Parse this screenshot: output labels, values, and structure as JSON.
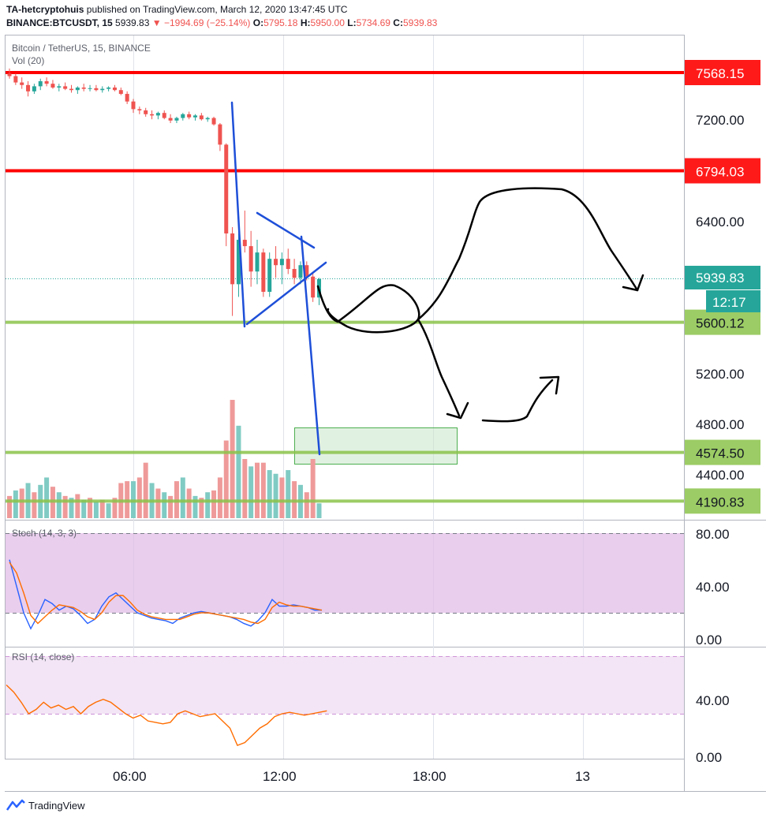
{
  "header": {
    "publisher": "TA-hetcryptohuis",
    "published_text": "published on TradingView.com, March 12, 2020 13:47:45 UTC",
    "symbol": "BINANCE:BTCUSDT, 15",
    "last": "5939.83",
    "change": "▼ −1994.69 (−25.14%)",
    "o_label": "O:",
    "o": "5795.18",
    "h_label": "H:",
    "h": "5950.00",
    "l_label": "L:",
    "l": "5734.69",
    "c_label": "C:",
    "c": "5939.83"
  },
  "legend": {
    "title": "Bitcoin / TetherUS, 15, BINANCE",
    "vol": "Vol (20)"
  },
  "price_axis": {
    "ticks": [
      "7200.00",
      "6400.00",
      "5200.00",
      "4800.00",
      "4400.00"
    ],
    "levels": [
      {
        "label": "7568.15",
        "value": 7568.15,
        "kind": "resistance",
        "color": "#ff0000"
      },
      {
        "label": "6794.03",
        "value": 6794.03,
        "kind": "resistance",
        "color": "#ff0000"
      },
      {
        "label": "5600.12",
        "value": 5600.12,
        "kind": "support",
        "color": "#8bc34a"
      },
      {
        "label": "4574.50",
        "value": 4574.5,
        "kind": "support",
        "color": "#8bc34a"
      },
      {
        "label": "4190.83",
        "value": 4190.83,
        "kind": "support",
        "color": "#8bc34a"
      }
    ],
    "last_price": "5939.83",
    "countdown": "12:17",
    "last_color": "#26a69a"
  },
  "stoch": {
    "label": "Stoch (14, 3, 3)",
    "ticks": [
      "80.00",
      "40.00",
      "0.00"
    ],
    "k_color": "#2962ff",
    "d_color": "#ff6d00",
    "band_color": "#e1bee7"
  },
  "rsi": {
    "label": "RSI (14, close)",
    "ticks": [
      "40.00",
      "0.00"
    ],
    "line_color": "#ff6d00",
    "band_color": "#f3e5f5"
  },
  "time_axis": {
    "ticks": [
      "06:00",
      "12:00",
      "18:00",
      "13"
    ]
  },
  "footer": {
    "brand": "TradingView"
  },
  "chart_data": [
    {
      "type": "candlestick",
      "title": "Bitcoin / TetherUS, 15, BINANCE",
      "interval": "15",
      "ylim": [
        4100,
        7750
      ],
      "x_ticks": [
        "06:00",
        "12:00",
        "18:00",
        "13"
      ],
      "candles": [
        [
          7560,
          7600,
          7520,
          7540
        ],
        [
          7540,
          7560,
          7470,
          7490
        ],
        [
          7490,
          7530,
          7440,
          7470
        ],
        [
          7470,
          7500,
          7380,
          7420
        ],
        [
          7420,
          7480,
          7400,
          7460
        ],
        [
          7460,
          7520,
          7430,
          7500
        ],
        [
          7500,
          7530,
          7460,
          7480
        ],
        [
          7480,
          7510,
          7440,
          7450
        ],
        [
          7450,
          7480,
          7420,
          7460
        ],
        [
          7460,
          7490,
          7430,
          7440
        ],
        [
          7440,
          7470,
          7410,
          7430
        ],
        [
          7430,
          7460,
          7400,
          7450
        ],
        [
          7450,
          7480,
          7420,
          7440
        ],
        [
          7440,
          7470,
          7420,
          7445
        ],
        [
          7445,
          7470,
          7420,
          7430
        ],
        [
          7430,
          7460,
          7410,
          7440
        ],
        [
          7440,
          7460,
          7420,
          7450
        ],
        [
          7450,
          7470,
          7420,
          7430
        ],
        [
          7430,
          7450,
          7390,
          7400
        ],
        [
          7400,
          7420,
          7320,
          7340
        ],
        [
          7340,
          7360,
          7250,
          7280
        ],
        [
          7280,
          7300,
          7240,
          7270
        ],
        [
          7270,
          7290,
          7220,
          7240
        ],
        [
          7240,
          7270,
          7200,
          7230
        ],
        [
          7230,
          7260,
          7200,
          7250
        ],
        [
          7250,
          7270,
          7200,
          7210
        ],
        [
          7210,
          7240,
          7170,
          7190
        ],
        [
          7190,
          7220,
          7170,
          7210
        ],
        [
          7210,
          7250,
          7190,
          7240
        ],
        [
          7240,
          7260,
          7200,
          7215
        ],
        [
          7215,
          7240,
          7190,
          7230
        ],
        [
          7230,
          7250,
          7190,
          7200
        ],
        [
          7200,
          7220,
          7180,
          7210
        ],
        [
          7210,
          7220,
          7150,
          7160
        ],
        [
          7160,
          7170,
          6950,
          7000
        ],
        [
          7000,
          7010,
          6200,
          6300
        ],
        [
          6300,
          6350,
          5650,
          5900
        ],
        [
          5900,
          6300,
          5800,
          6250
        ],
        [
          6250,
          6480,
          6150,
          6200
        ],
        [
          6200,
          6320,
          5880,
          6000
        ],
        [
          6000,
          6250,
          5900,
          6150
        ],
        [
          6150,
          6180,
          5800,
          5840
        ],
        [
          5840,
          6150,
          5800,
          6100
        ],
        [
          6100,
          6200,
          5950,
          6050
        ],
        [
          6050,
          6150,
          5900,
          6100
        ],
        [
          6100,
          6180,
          5980,
          6020
        ],
        [
          6020,
          6100,
          5900,
          5950
        ],
        [
          5950,
          6080,
          5900,
          6050
        ],
        [
          6050,
          6080,
          5930,
          5960
        ],
        [
          5960,
          5990,
          5760,
          5795
        ],
        [
          5795,
          5950,
          5735,
          5940
        ]
      ],
      "volume": [
        {
          "v": 60,
          "up": false
        },
        {
          "v": 75,
          "up": true
        },
        {
          "v": 80,
          "up": false
        },
        {
          "v": 95,
          "up": true
        },
        {
          "v": 70,
          "up": false
        },
        {
          "v": 90,
          "up": true
        },
        {
          "v": 110,
          "up": true
        },
        {
          "v": 85,
          "up": false
        },
        {
          "v": 70,
          "up": true
        },
        {
          "v": 60,
          "up": false
        },
        {
          "v": 55,
          "up": true
        },
        {
          "v": 65,
          "up": false
        },
        {
          "v": 50,
          "up": true
        },
        {
          "v": 55,
          "up": false
        },
        {
          "v": 45,
          "up": true
        },
        {
          "v": 50,
          "up": false
        },
        {
          "v": 40,
          "up": true
        },
        {
          "v": 55,
          "up": false
        },
        {
          "v": 95,
          "up": false
        },
        {
          "v": 100,
          "up": false
        },
        {
          "v": 100,
          "up": true
        },
        {
          "v": 110,
          "up": false
        },
        {
          "v": 150,
          "up": false
        },
        {
          "v": 95,
          "up": true
        },
        {
          "v": 80,
          "up": false
        },
        {
          "v": 70,
          "up": true
        },
        {
          "v": 60,
          "up": false
        },
        {
          "v": 100,
          "up": false
        },
        {
          "v": 110,
          "up": true
        },
        {
          "v": 80,
          "up": false
        },
        {
          "v": 60,
          "up": true
        },
        {
          "v": 55,
          "up": false
        },
        {
          "v": 70,
          "up": true
        },
        {
          "v": 75,
          "up": false
        },
        {
          "v": 110,
          "up": false
        },
        {
          "v": 210,
          "up": false
        },
        {
          "v": 320,
          "up": false
        },
        {
          "v": 250,
          "up": true
        },
        {
          "v": 160,
          "up": false
        },
        {
          "v": 140,
          "up": true
        },
        {
          "v": 150,
          "up": false
        },
        {
          "v": 150,
          "up": false
        },
        {
          "v": 130,
          "up": true
        },
        {
          "v": 120,
          "up": true
        },
        {
          "v": 110,
          "up": false
        },
        {
          "v": 130,
          "up": true
        },
        {
          "v": 100,
          "up": false
        },
        {
          "v": 90,
          "up": true
        },
        {
          "v": 70,
          "up": false
        },
        {
          "v": 160,
          "up": false
        },
        {
          "v": 40,
          "up": true
        }
      ],
      "levels": [
        7568.15,
        6794.03,
        5600.12,
        4574.5,
        4190.83
      ],
      "target_zone": {
        "from_candle": 46,
        "to_candle": 70,
        "price_low": 4540,
        "price_high": 4780
      }
    },
    {
      "type": "line",
      "title": "Stoch (14, 3, 3)",
      "ylim": [
        0,
        80
      ],
      "bands": [
        20,
        80
      ],
      "series": [
        {
          "color": "#2962ff",
          "values": [
            60,
            40,
            20,
            8,
            18,
            30,
            27,
            22,
            25,
            23,
            18,
            12,
            15,
            25,
            32,
            35,
            30,
            25,
            20,
            18,
            16,
            15,
            14,
            12,
            16,
            18,
            20,
            21,
            20,
            19,
            18,
            17,
            15,
            12,
            10,
            14,
            20,
            30,
            25,
            25,
            26,
            25,
            24,
            22,
            22
          ]
        },
        {
          "color": "#ff6d00",
          "values": [
            58,
            50,
            35,
            18,
            12,
            17,
            22,
            26,
            25,
            24,
            21,
            17,
            15,
            20,
            28,
            33,
            33,
            28,
            22,
            19,
            17,
            16,
            15,
            15,
            15,
            17,
            19,
            20,
            20,
            19,
            18,
            17,
            16,
            15,
            13,
            12,
            15,
            24,
            28,
            26,
            25,
            25,
            24,
            23,
            22
          ]
        }
      ]
    },
    {
      "type": "line",
      "title": "RSI (14, close)",
      "ylim": [
        0,
        70
      ],
      "bands": [
        30,
        70
      ],
      "series": [
        {
          "color": "#ff6d00",
          "values": [
            50,
            45,
            38,
            30,
            33,
            38,
            34,
            36,
            33,
            35,
            30,
            35,
            38,
            40,
            38,
            34,
            30,
            27,
            29,
            25,
            24,
            23,
            24,
            30,
            32,
            30,
            28,
            29,
            30,
            25,
            20,
            8,
            10,
            15,
            20,
            23,
            28,
            30,
            31,
            30,
            29,
            30,
            31,
            32
          ]
        }
      ]
    }
  ]
}
